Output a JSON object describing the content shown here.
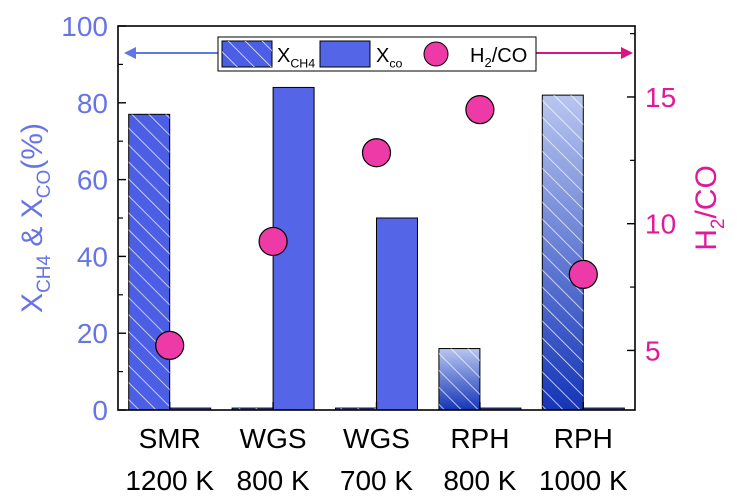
{
  "chart_data": {
    "type": "bar",
    "categories": [
      [
        "SMR",
        "1200 K"
      ],
      [
        "WGS",
        "800 K"
      ],
      [
        "WGS",
        "700 K"
      ],
      [
        "RPH",
        "800 K"
      ],
      [
        "RPH",
        "1000 K"
      ]
    ],
    "series": [
      {
        "name": "X_CH4",
        "axis": "left",
        "style": "hatched",
        "values": [
          77,
          0.5,
          0.5,
          16,
          82
        ]
      },
      {
        "name": "X_co",
        "axis": "left",
        "style": "solid",
        "values": [
          0.5,
          84,
          50,
          0.5,
          0.5
        ]
      },
      {
        "name": "H2/CO",
        "axis": "right",
        "type": "scatter",
        "values": [
          5.2,
          9.3,
          12.8,
          14.5,
          8.0
        ]
      }
    ],
    "y_left": {
      "label": "X_CH4 & X_CO(%)",
      "ylim": [
        0,
        100
      ],
      "ticks": [
        0,
        20,
        40,
        60,
        80,
        100
      ],
      "color": "#6674e6"
    },
    "y_right": {
      "label": "H2/CO",
      "ylim": [
        2.65,
        17.8
      ],
      "ticks": [
        5,
        10,
        15
      ],
      "color": "#e0189b"
    },
    "legend": {
      "placement": "top-center",
      "items": [
        {
          "main": "X",
          "sub": "CH4"
        },
        {
          "main": "X",
          "sub": "co"
        },
        {
          "text": "H2/CO"
        }
      ]
    },
    "colors": {
      "bar_hatched": "#4b5ee4",
      "bar_solid": "#5565e8",
      "gradient_dark": "#1535b8",
      "gradient_light": "#b8c6ef",
      "marker": "#ee3aa6",
      "left_arrow": "#5f78e6",
      "right_arrow": "#d9157e"
    },
    "grid": false
  }
}
